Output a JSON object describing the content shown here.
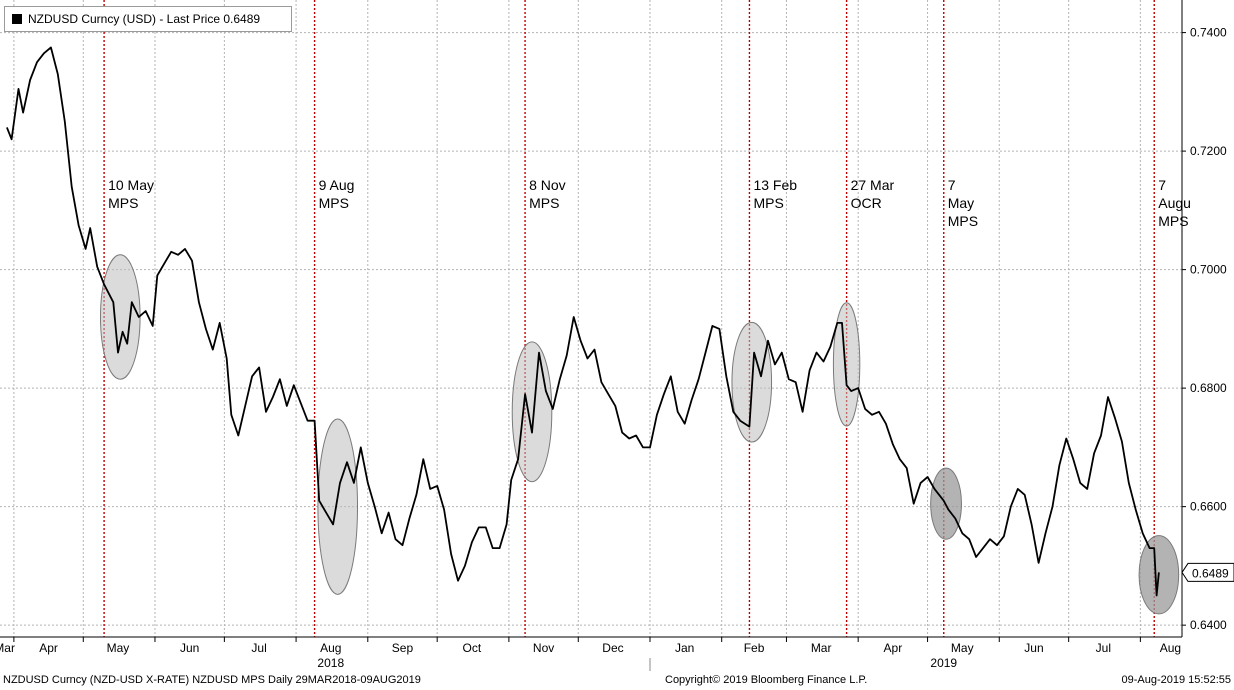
{
  "legend": {
    "label": "NZDUSD Curncy (USD) - Last Price 0.6489"
  },
  "footer": {
    "left": "NZDUSD Curncy (NZD-USD X-RATE) NZDUSD MPS  Daily 29MAR2018-09AUG2019",
    "center": "Copyright© 2019 Bloomberg Finance L.P.",
    "right": "09-Aug-2019 15:52:55"
  },
  "colors": {
    "line": "#000000",
    "event_line": "#c00000",
    "grid": "#b4b4b4",
    "ellipse_fill": "#bdbdbd"
  },
  "chart_data": {
    "type": "line",
    "title": "NZDUSD Curncy (USD) - Last Price 0.6489",
    "last_price_label": "0.6489",
    "ylim": [
      0.638,
      0.7455
    ],
    "y_ticks": [
      "0.6400",
      "0.6600",
      "0.6800",
      "0.7000",
      "0.7200",
      "0.7400"
    ],
    "x_month_labels": [
      "Mar",
      "Apr",
      "May",
      "Jun",
      "Jul",
      "Aug",
      "Sep",
      "Oct",
      "Nov",
      "Dec",
      "Jan",
      "Feb",
      "Mar",
      "Apr",
      "May",
      "Jun",
      "Jul",
      "Aug"
    ],
    "year_labels": [
      "2018",
      "2019"
    ],
    "month_starts": [
      "2018-04-01",
      "2018-05-01",
      "2018-06-01",
      "2018-07-01",
      "2018-08-01",
      "2018-09-01",
      "2018-10-01",
      "2018-11-01",
      "2018-12-01",
      "2019-01-01",
      "2019-02-01",
      "2019-03-01",
      "2019-04-01",
      "2019-05-01",
      "2019-06-01",
      "2019-07-01",
      "2019-08-01"
    ],
    "events": [
      {
        "date": "2018-05-10",
        "label": [
          "10 May",
          "MPS"
        ]
      },
      {
        "date": "2018-08-09",
        "label": [
          "9 Aug",
          "MPS"
        ]
      },
      {
        "date": "2018-11-08",
        "label": [
          "8 Nov",
          "MPS"
        ]
      },
      {
        "date": "2019-02-13",
        "label": [
          "13 Feb",
          "MPS"
        ]
      },
      {
        "date": "2019-03-27",
        "label": [
          "27 Mar",
          "OCR"
        ]
      },
      {
        "date": "2019-05-08",
        "label": [
          "7",
          "May",
          "MPS"
        ]
      },
      {
        "date": "2019-08-07",
        "label": [
          "7",
          "Augu",
          "MPS"
        ]
      }
    ],
    "highlights": [
      {
        "date": "2018-05-17",
        "y": 0.692,
        "dx": 9,
        "dy": 0.0105
      },
      {
        "date": "2018-08-19",
        "y": 0.66,
        "dx": 9,
        "dy": 0.0148
      },
      {
        "date": "2018-11-11",
        "y": 0.676,
        "dx": 9,
        "dy": 0.0118
      },
      {
        "date": "2019-02-14",
        "y": 0.681,
        "dx": 9,
        "dy": 0.0101
      },
      {
        "date": "2019-03-27",
        "y": 0.684,
        "dx": 6,
        "dy": 0.0104
      },
      {
        "date": "2019-05-09",
        "y": 0.6605,
        "dx": 7,
        "dy": 0.006
      },
      {
        "date": "2019-08-09",
        "y": 0.6485,
        "dx": 9,
        "dy": 0.0066
      }
    ],
    "series": [
      {
        "points": [
          [
            "2018-03-29",
            0.724
          ],
          [
            "2018-03-31",
            0.722
          ],
          [
            "2018-04-03",
            0.7305
          ],
          [
            "2018-04-05",
            0.7265
          ],
          [
            "2018-04-08",
            0.732
          ],
          [
            "2018-04-11",
            0.735
          ],
          [
            "2018-04-14",
            0.7365
          ],
          [
            "2018-04-17",
            0.7375
          ],
          [
            "2018-04-20",
            0.733
          ],
          [
            "2018-04-23",
            0.725
          ],
          [
            "2018-04-26",
            0.714
          ],
          [
            "2018-04-29",
            0.7075
          ],
          [
            "2018-05-02",
            0.7035
          ],
          [
            "2018-05-04",
            0.707
          ],
          [
            "2018-05-07",
            0.7005
          ],
          [
            "2018-05-10",
            0.6975
          ],
          [
            "2018-05-12",
            0.696
          ],
          [
            "2018-05-14",
            0.6945
          ],
          [
            "2018-05-16",
            0.686
          ],
          [
            "2018-05-18",
            0.6895
          ],
          [
            "2018-05-20",
            0.6875
          ],
          [
            "2018-05-22",
            0.6945
          ],
          [
            "2018-05-25",
            0.692
          ],
          [
            "2018-05-28",
            0.693
          ],
          [
            "2018-05-31",
            0.6905
          ],
          [
            "2018-06-02",
            0.699
          ],
          [
            "2018-06-05",
            0.701
          ],
          [
            "2018-06-08",
            0.703
          ],
          [
            "2018-06-11",
            0.7025
          ],
          [
            "2018-06-14",
            0.7035
          ],
          [
            "2018-06-17",
            0.7015
          ],
          [
            "2018-06-20",
            0.6945
          ],
          [
            "2018-06-23",
            0.69
          ],
          [
            "2018-06-26",
            0.6865
          ],
          [
            "2018-06-29",
            0.691
          ],
          [
            "2018-07-02",
            0.685
          ],
          [
            "2018-07-04",
            0.6755
          ],
          [
            "2018-07-07",
            0.672
          ],
          [
            "2018-07-10",
            0.677
          ],
          [
            "2018-07-13",
            0.682
          ],
          [
            "2018-07-16",
            0.6835
          ],
          [
            "2018-07-19",
            0.676
          ],
          [
            "2018-07-22",
            0.6785
          ],
          [
            "2018-07-25",
            0.6815
          ],
          [
            "2018-07-28",
            0.677
          ],
          [
            "2018-07-31",
            0.6805
          ],
          [
            "2018-08-03",
            0.6775
          ],
          [
            "2018-08-06",
            0.6745
          ],
          [
            "2018-08-09",
            0.6745
          ],
          [
            "2018-08-11",
            0.661
          ],
          [
            "2018-08-14",
            0.659
          ],
          [
            "2018-08-17",
            0.657
          ],
          [
            "2018-08-20",
            0.664
          ],
          [
            "2018-08-23",
            0.6675
          ],
          [
            "2018-08-26",
            0.664
          ],
          [
            "2018-08-29",
            0.67
          ],
          [
            "2018-09-01",
            0.664
          ],
          [
            "2018-09-04",
            0.66
          ],
          [
            "2018-09-07",
            0.6555
          ],
          [
            "2018-09-10",
            0.659
          ],
          [
            "2018-09-13",
            0.6545
          ],
          [
            "2018-09-16",
            0.6535
          ],
          [
            "2018-09-19",
            0.658
          ],
          [
            "2018-09-22",
            0.662
          ],
          [
            "2018-09-25",
            0.668
          ],
          [
            "2018-09-28",
            0.663
          ],
          [
            "2018-10-01",
            0.6635
          ],
          [
            "2018-10-04",
            0.6595
          ],
          [
            "2018-10-07",
            0.652
          ],
          [
            "2018-10-10",
            0.6475
          ],
          [
            "2018-10-13",
            0.65
          ],
          [
            "2018-10-16",
            0.654
          ],
          [
            "2018-10-19",
            0.6565
          ],
          [
            "2018-10-22",
            0.6565
          ],
          [
            "2018-10-25",
            0.653
          ],
          [
            "2018-10-28",
            0.653
          ],
          [
            "2018-10-31",
            0.657
          ],
          [
            "2018-11-02",
            0.6645
          ],
          [
            "2018-11-05",
            0.668
          ],
          [
            "2018-11-08",
            0.679
          ],
          [
            "2018-11-11",
            0.6725
          ],
          [
            "2018-11-14",
            0.686
          ],
          [
            "2018-11-17",
            0.6795
          ],
          [
            "2018-11-20",
            0.6765
          ],
          [
            "2018-11-23",
            0.6815
          ],
          [
            "2018-11-26",
            0.6855
          ],
          [
            "2018-11-29",
            0.692
          ],
          [
            "2018-12-02",
            0.688
          ],
          [
            "2018-12-05",
            0.685
          ],
          [
            "2018-12-08",
            0.6865
          ],
          [
            "2018-12-11",
            0.681
          ],
          [
            "2018-12-14",
            0.679
          ],
          [
            "2018-12-17",
            0.677
          ],
          [
            "2018-12-20",
            0.6725
          ],
          [
            "2018-12-23",
            0.6715
          ],
          [
            "2018-12-26",
            0.672
          ],
          [
            "2018-12-29",
            0.67
          ],
          [
            "2019-01-01",
            0.67
          ],
          [
            "2019-01-04",
            0.6755
          ],
          [
            "2019-01-07",
            0.679
          ],
          [
            "2019-01-10",
            0.682
          ],
          [
            "2019-01-13",
            0.676
          ],
          [
            "2019-01-16",
            0.674
          ],
          [
            "2019-01-19",
            0.678
          ],
          [
            "2019-01-22",
            0.6815
          ],
          [
            "2019-01-25",
            0.686
          ],
          [
            "2019-01-28",
            0.6905
          ],
          [
            "2019-01-31",
            0.69
          ],
          [
            "2019-02-03",
            0.682
          ],
          [
            "2019-02-06",
            0.676
          ],
          [
            "2019-02-09",
            0.6745
          ],
          [
            "2019-02-13",
            0.6735
          ],
          [
            "2019-02-15",
            0.686
          ],
          [
            "2019-02-18",
            0.682
          ],
          [
            "2019-02-21",
            0.688
          ],
          [
            "2019-02-24",
            0.684
          ],
          [
            "2019-02-27",
            0.686
          ],
          [
            "2019-03-02",
            0.6815
          ],
          [
            "2019-03-05",
            0.681
          ],
          [
            "2019-03-08",
            0.676
          ],
          [
            "2019-03-11",
            0.683
          ],
          [
            "2019-03-14",
            0.686
          ],
          [
            "2019-03-17",
            0.6845
          ],
          [
            "2019-03-20",
            0.687
          ],
          [
            "2019-03-23",
            0.691
          ],
          [
            "2019-03-25",
            0.691
          ],
          [
            "2019-03-27",
            0.6805
          ],
          [
            "2019-03-29",
            0.6795
          ],
          [
            "2019-04-01",
            0.68
          ],
          [
            "2019-04-04",
            0.6765
          ],
          [
            "2019-04-07",
            0.6755
          ],
          [
            "2019-04-10",
            0.676
          ],
          [
            "2019-04-13",
            0.674
          ],
          [
            "2019-04-16",
            0.6705
          ],
          [
            "2019-04-19",
            0.668
          ],
          [
            "2019-04-22",
            0.6665
          ],
          [
            "2019-04-25",
            0.6605
          ],
          [
            "2019-04-28",
            0.664
          ],
          [
            "2019-05-01",
            0.665
          ],
          [
            "2019-05-04",
            0.663
          ],
          [
            "2019-05-08",
            0.661
          ],
          [
            "2019-05-10",
            0.6595
          ],
          [
            "2019-05-13",
            0.658
          ],
          [
            "2019-05-16",
            0.6555
          ],
          [
            "2019-05-19",
            0.6545
          ],
          [
            "2019-05-22",
            0.6515
          ],
          [
            "2019-05-25",
            0.653
          ],
          [
            "2019-05-28",
            0.6545
          ],
          [
            "2019-05-31",
            0.6535
          ],
          [
            "2019-06-03",
            0.655
          ],
          [
            "2019-06-06",
            0.66
          ],
          [
            "2019-06-09",
            0.663
          ],
          [
            "2019-06-12",
            0.662
          ],
          [
            "2019-06-15",
            0.657
          ],
          [
            "2019-06-18",
            0.6505
          ],
          [
            "2019-06-21",
            0.6555
          ],
          [
            "2019-06-24",
            0.66
          ],
          [
            "2019-06-27",
            0.667
          ],
          [
            "2019-06-30",
            0.6715
          ],
          [
            "2019-07-03",
            0.668
          ],
          [
            "2019-07-06",
            0.664
          ],
          [
            "2019-07-09",
            0.663
          ],
          [
            "2019-07-12",
            0.669
          ],
          [
            "2019-07-15",
            0.672
          ],
          [
            "2019-07-18",
            0.6785
          ],
          [
            "2019-07-21",
            0.675
          ],
          [
            "2019-07-24",
            0.671
          ],
          [
            "2019-07-27",
            0.664
          ],
          [
            "2019-07-30",
            0.6595
          ],
          [
            "2019-08-02",
            0.6555
          ],
          [
            "2019-08-05",
            0.653
          ],
          [
            "2019-08-07",
            0.653
          ],
          [
            "2019-08-08",
            0.645
          ],
          [
            "2019-08-09",
            0.6489
          ]
        ]
      }
    ]
  }
}
